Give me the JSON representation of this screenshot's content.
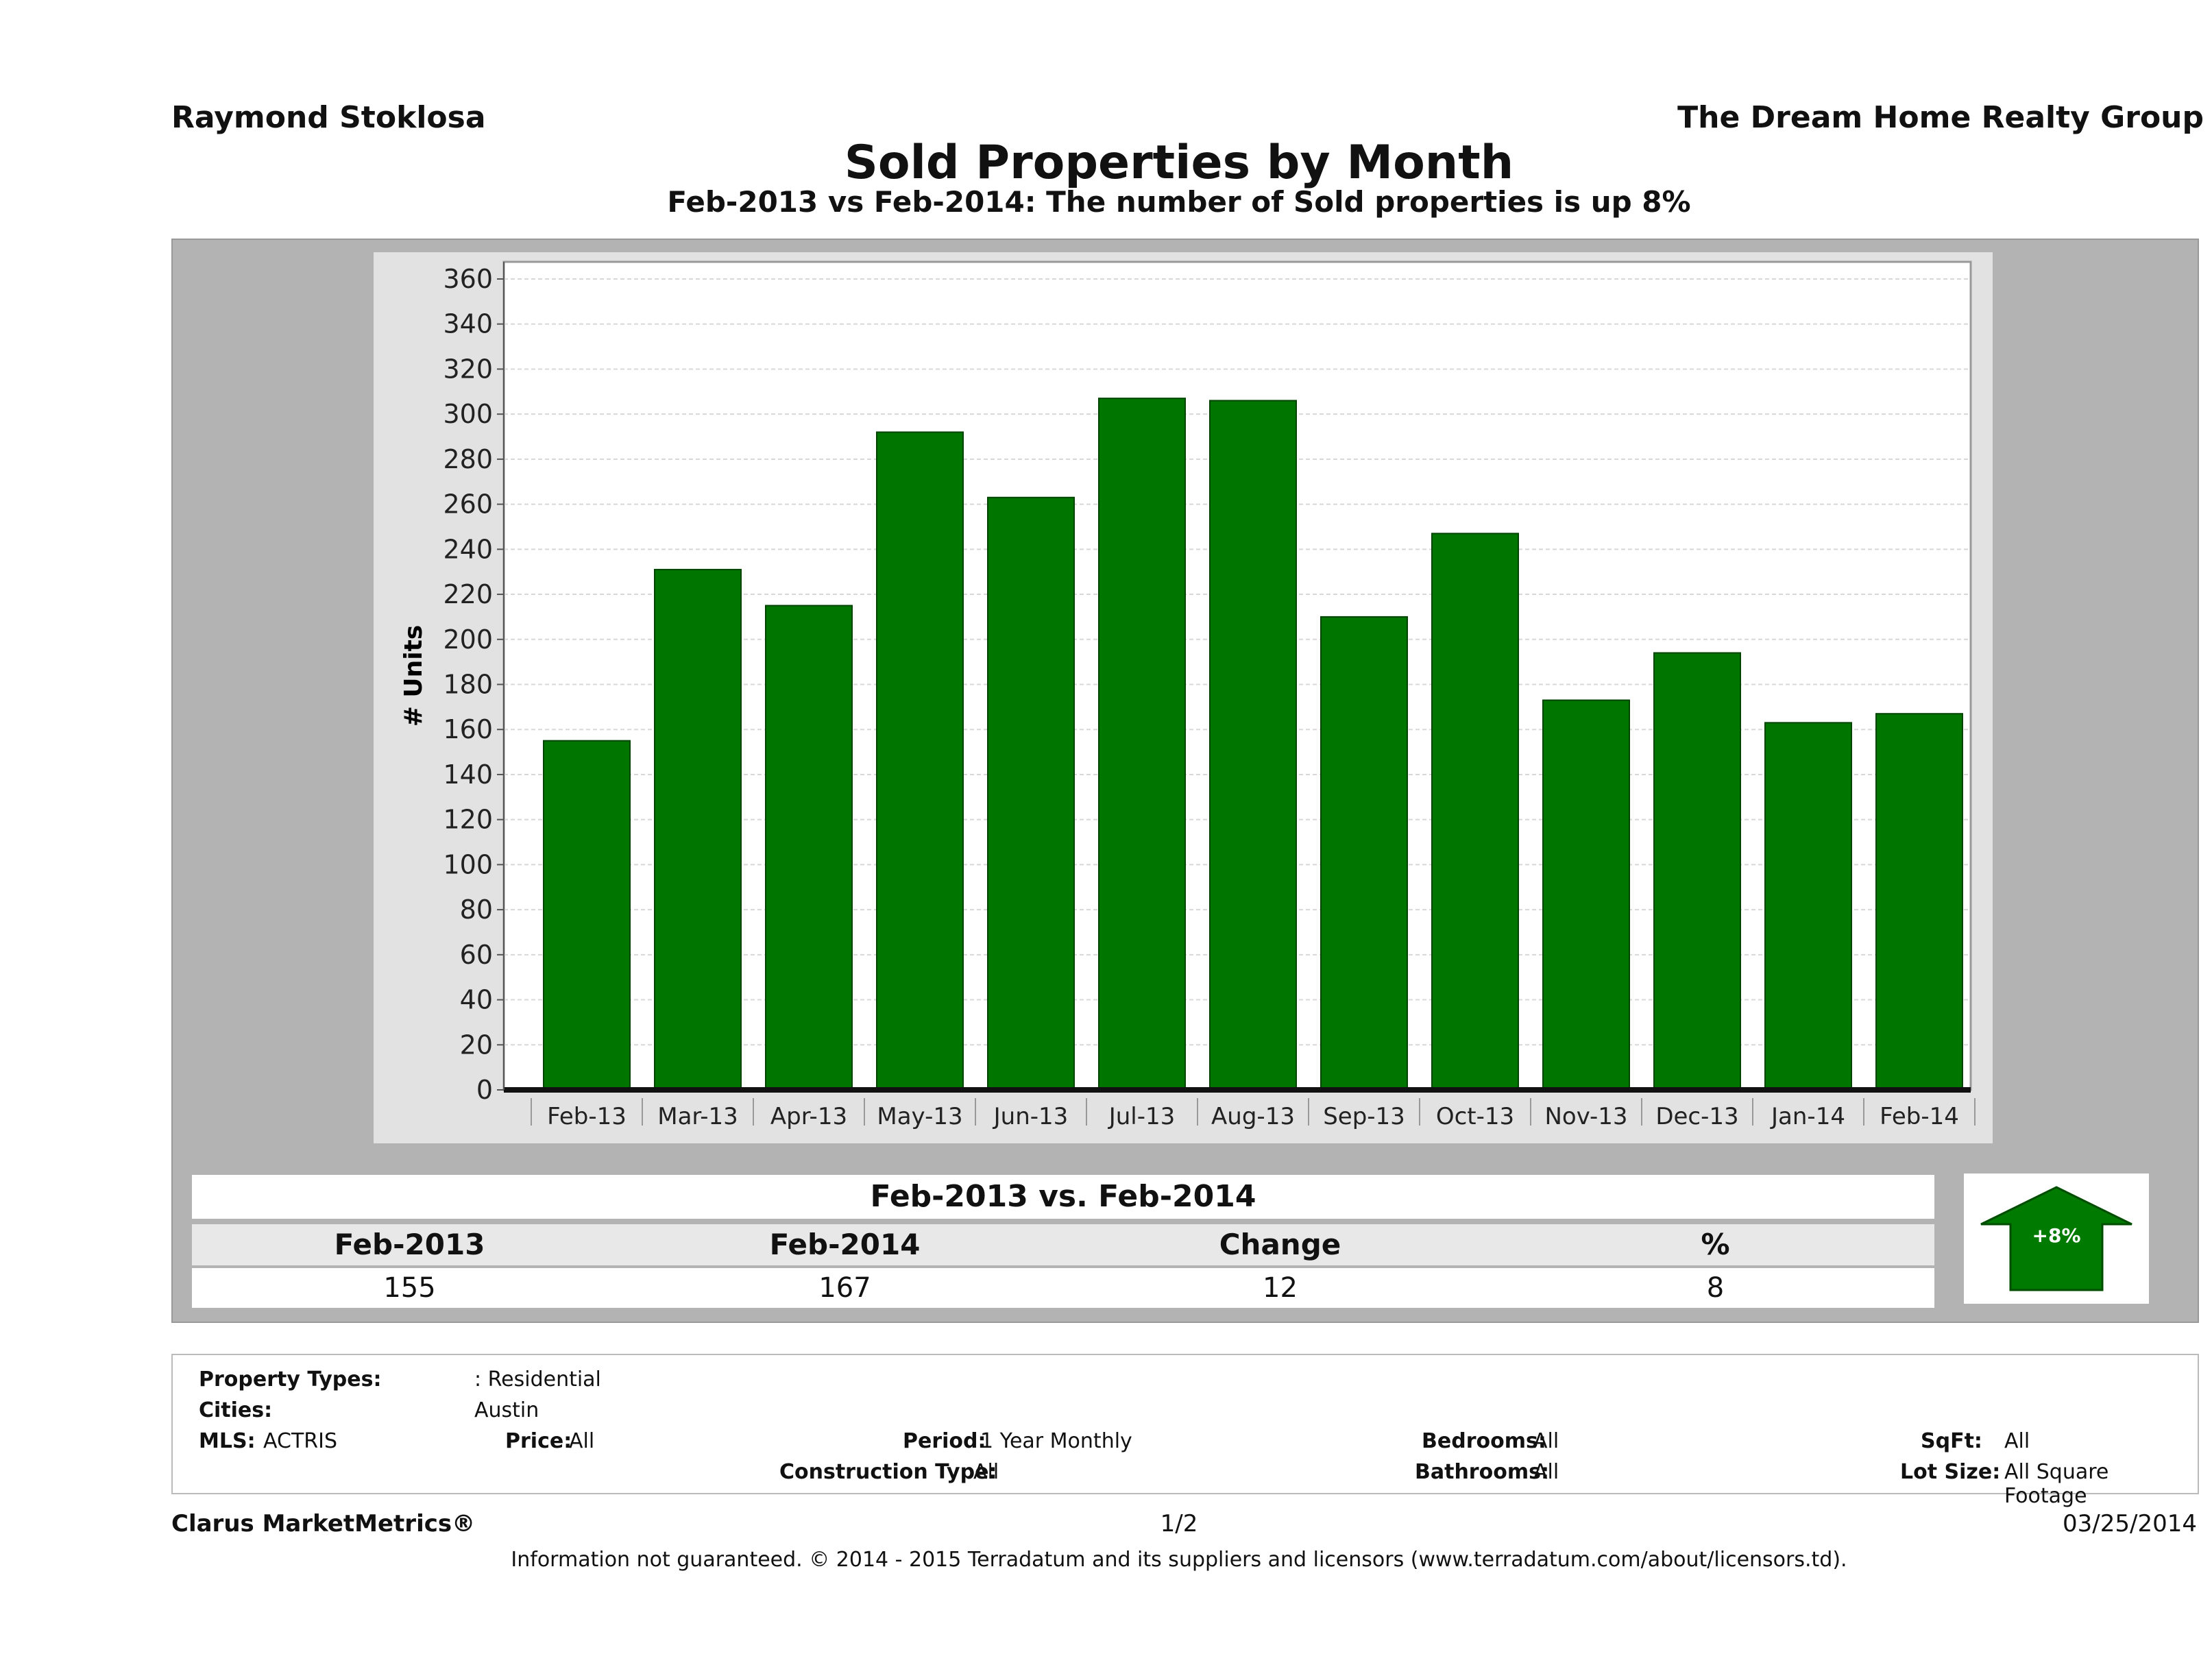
{
  "header": {
    "agent_name": "Raymond Stoklosa",
    "company_name": "The Dream Home Realty Group",
    "title": "Sold Properties by Month",
    "subtitle": "Feb-2013 vs Feb-2014: The number of Sold  properties is up 8%"
  },
  "chart_data": {
    "type": "bar",
    "categories": [
      "Feb-13",
      "Mar-13",
      "Apr-13",
      "May-13",
      "Jun-13",
      "Jul-13",
      "Aug-13",
      "Sep-13",
      "Oct-13",
      "Nov-13",
      "Dec-13",
      "Jan-14",
      "Feb-14"
    ],
    "values": [
      155,
      231,
      215,
      292,
      263,
      307,
      306,
      210,
      247,
      173,
      194,
      163,
      167
    ],
    "ylabel": "# Units",
    "xlabel": "",
    "ylim": [
      0,
      360
    ],
    "yticks": [
      0,
      20,
      40,
      60,
      80,
      100,
      120,
      140,
      160,
      180,
      200,
      220,
      240,
      260,
      280,
      300,
      320,
      340,
      360
    ],
    "grid": true,
    "bar_color": "#007500"
  },
  "summary": {
    "title": "Feb-2013 vs. Feb-2014",
    "headers": [
      "Feb-2013",
      "Feb-2014",
      "Change",
      "%"
    ],
    "values": [
      "155",
      "167",
      "12",
      "8"
    ],
    "badge_text": "+8%",
    "badge_color": "#007a00"
  },
  "filters": {
    "property_types_label": "Property Types:",
    "property_types_value": ": Residential",
    "cities_label": "Cities:",
    "cities_value": "Austin",
    "mls_label": "MLS:",
    "mls_value": "ACTRIS",
    "price_label": "Price:",
    "price_value": "All",
    "period_label": "Period:",
    "period_value": "1 Year Monthly",
    "construction_label": "Construction Type:",
    "construction_value": "All",
    "bedrooms_label": "Bedrooms:",
    "bedrooms_value": "All",
    "bathrooms_label": "Bathrooms:",
    "bathrooms_value": "All",
    "sqft_label": "SqFt:",
    "sqft_value": "All",
    "lotsize_label": "Lot Size:",
    "lotsize_value": "All Square Footage"
  },
  "footer": {
    "brand": "Clarus MarketMetrics®",
    "page": "1/2",
    "date": "03/25/2014",
    "disclaimer": "Information not guaranteed. © 2014 - 2015 Terradatum and its suppliers and licensors (www.terradatum.com/about/licensors.td)."
  }
}
